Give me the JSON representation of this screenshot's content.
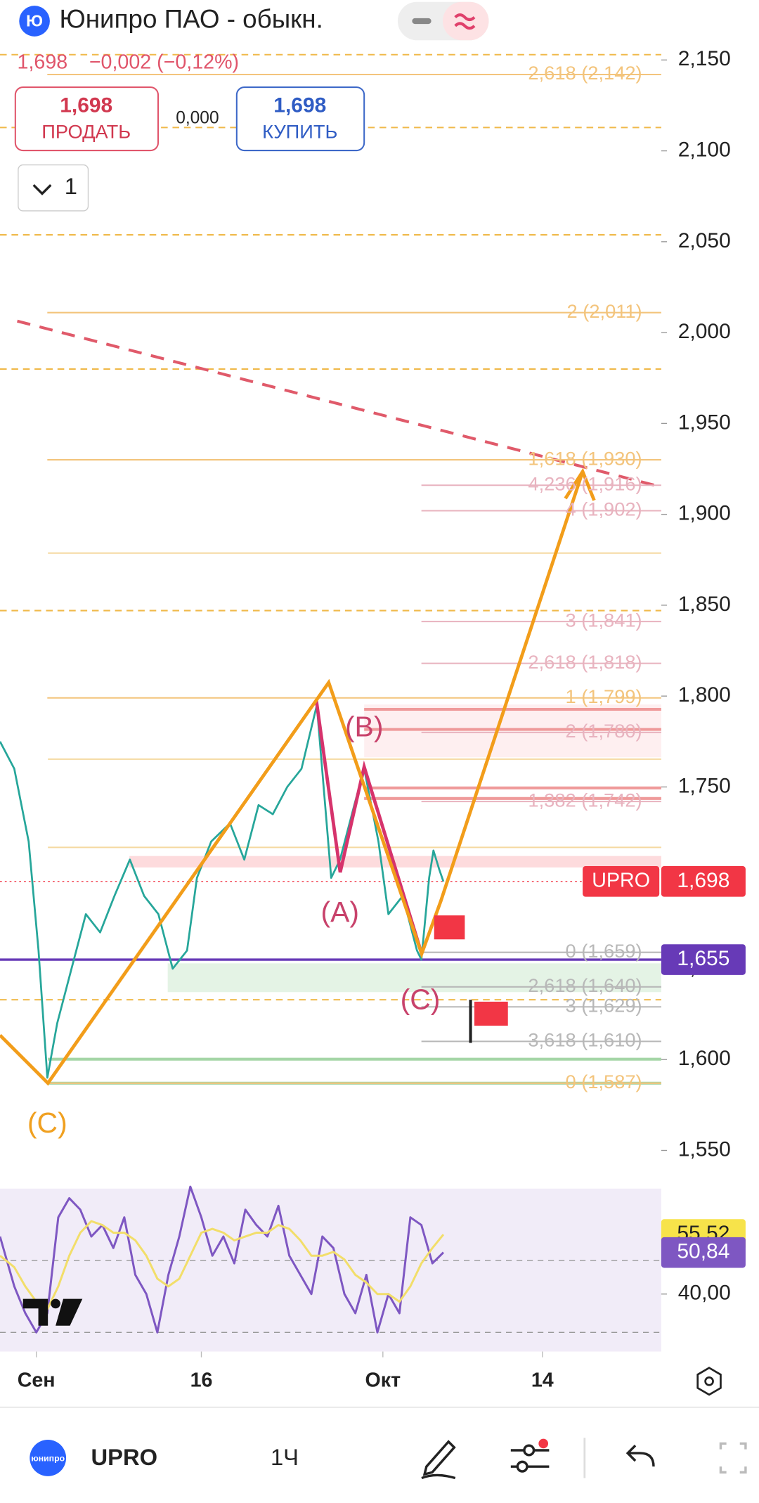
{
  "header": {
    "logo": "Ю",
    "title": "Юнипро ПАО - обыкн.",
    "price": "1,698",
    "change": "−0,002 (−0,12%)",
    "sell_price": "1,698",
    "sell_label": "ПРОДАТЬ",
    "spread": "0,000",
    "buy_price": "1,698",
    "buy_label": "КУПИТЬ",
    "layout_count": "1"
  },
  "chart_data": [
    {
      "type": "line",
      "color": "#26a69a",
      "x": [
        -3.3,
        -2.0,
        -0.7,
        0.2,
        1.0,
        1.9,
        3.2,
        4.5,
        5.8,
        7.1,
        8.5,
        9.8,
        11.1,
        12.4,
        13.7,
        14.6,
        15.9,
        17.6,
        18.9,
        20.2,
        21.5,
        22.8,
        24.1,
        25.5,
        26.8,
        27.6,
        28.9,
        29.8,
        31.1,
        32.0,
        33.3,
        34.6,
        35.0,
        35.7,
        36.1,
        36.6,
        37.0
      ],
      "values": [
        1775,
        1760,
        1720,
        1660,
        1590,
        1620,
        1650,
        1680,
        1670,
        1690,
        1710,
        1690,
        1680,
        1650,
        1660,
        1700,
        1720,
        1730,
        1710,
        1740,
        1735,
        1750,
        1760,
        1795,
        1700,
        1710,
        1740,
        1760,
        1720,
        1680,
        1690,
        1660,
        1655,
        1700,
        1715,
        1705,
        1698
      ],
      "xlim": [
        -3.3,
        56.8
      ],
      "xticks": [
        {
          "value": 0,
          "label": "Сен"
        },
        {
          "value": 15,
          "label": "16"
        },
        {
          "value": 31.5,
          "label": "Окт"
        },
        {
          "value": 46,
          "label": "14"
        }
      ],
      "ylim": [
        1529,
        2183
      ],
      "yticks": [
        {
          "value": 1550,
          "label": "1,550"
        },
        {
          "value": 1600,
          "label": "1,600"
        },
        {
          "value": 1650,
          "label": "1,650"
        },
        {
          "value": 1700,
          "label": "1,700"
        },
        {
          "value": 1750,
          "label": "1,750"
        },
        {
          "value": 1800,
          "label": "1,800"
        },
        {
          "value": 1850,
          "label": "1,850"
        },
        {
          "value": 1900,
          "label": "1,900"
        },
        {
          "value": 1950,
          "label": "1,950"
        },
        {
          "value": 2000,
          "label": "2,000"
        },
        {
          "value": 2050,
          "label": "2,050"
        },
        {
          "value": 2100,
          "label": "2,100"
        },
        {
          "value": 2150,
          "label": "2,150"
        }
      ],
      "annotations": [
        {
          "label": "2,618 (2,142)",
          "level": 2142,
          "x0": 1,
          "color": "#f3c47c"
        },
        {
          "label": "2 (2,011)",
          "level": 2011,
          "x0": 1,
          "color": "#f3c47c"
        },
        {
          "label": "1,618 (1,930)",
          "level": 1930,
          "x0": 1,
          "color": "#f3c47c"
        },
        {
          "label": "4,236 (1,916)",
          "level": 1916,
          "x0": 35,
          "color": "#e8b3bf"
        },
        {
          "label": "4 (1,902)",
          "level": 1902,
          "x0": 35,
          "color": "#e8b3bf"
        },
        {
          "label": "3 (1,841)",
          "level": 1841,
          "x0": 35,
          "color": "#e8b3bf"
        },
        {
          "label": "2,618 (1,818)",
          "level": 1818,
          "x0": 35,
          "color": "#e8b3bf"
        },
        {
          "label": "1 (1,799)",
          "level": 1799,
          "x0": 1,
          "color": "#f3c47c"
        },
        {
          "label": "2 (1,780)",
          "level": 1780,
          "x0": 35,
          "color": "#e8b3bf"
        },
        {
          "label": "1,382 (1,742)",
          "level": 1742,
          "x0": 35,
          "color": "#e8b3bf"
        },
        {
          "label": "0 (1,659)",
          "level": 1659,
          "x0": 35,
          "color": "#b8b8b8"
        },
        {
          "label": "2,618 (1,640)",
          "level": 1640,
          "x0": 35,
          "color": "#b8b8b8"
        },
        {
          "label": "3 (1,629)",
          "level": 1629,
          "x0": 35,
          "color": "#b8b8b8"
        },
        {
          "label": "3,618 (1,610)",
          "level": 1610,
          "x0": 35,
          "color": "#b8b8b8"
        },
        {
          "label": "0 (1,587)",
          "level": 1587,
          "x0": 1,
          "color": "#f3c47c"
        }
      ],
      "wave_labels": [
        {
          "text": "(B)",
          "x": 29.8,
          "y": 1782,
          "color": "#c8426b"
        },
        {
          "text": "(A)",
          "x": 27.6,
          "y": 1680,
          "color": "#c8426b"
        },
        {
          "text": "(C)",
          "x": 34.9,
          "y": 1632,
          "color": "#c8426b"
        },
        {
          "text": "(C)",
          "x": 1.0,
          "y": 1564,
          "color": "#f0a020"
        }
      ],
      "price_tags": [
        {
          "name": "UPRO",
          "label": "1,698",
          "value": 1698,
          "color": "#f23645"
        },
        {
          "label": "1,655",
          "value": 1655,
          "color": "#673ab7"
        }
      ]
    },
    {
      "type": "line",
      "x": [
        -3.3,
        -2,
        -1,
        0,
        1,
        2,
        3,
        4,
        5,
        6,
        7,
        8,
        9,
        10,
        11,
        12,
        13,
        14,
        15,
        16,
        17,
        18,
        19,
        20,
        21,
        22,
        23,
        24,
        25,
        26,
        27,
        28,
        29,
        30,
        31,
        32,
        33,
        34,
        35,
        36,
        37
      ],
      "series": [
        {
          "color": "#7e57c2",
          "values": [
            55,
            42,
            35,
            30,
            35,
            60,
            65,
            62,
            55,
            58,
            52,
            60,
            45,
            40,
            30,
            45,
            55,
            68,
            60,
            50,
            55,
            48,
            62,
            58,
            55,
            63,
            50,
            45,
            40,
            55,
            52,
            40,
            35,
            45,
            30,
            40,
            35,
            60,
            58,
            48,
            50.84
          ]
        },
        {
          "color": "#f2de6a",
          "values": [
            50,
            47,
            42,
            38,
            36,
            42,
            50,
            56,
            59,
            58,
            56,
            56,
            54,
            50,
            44,
            42,
            44,
            50,
            56,
            57,
            56,
            54,
            55,
            56,
            56,
            58,
            57,
            54,
            50,
            50,
            51,
            49,
            45,
            43,
            40,
            40,
            38,
            42,
            48,
            52,
            55.52
          ]
        }
      ],
      "xlim": [
        -3.3,
        56.8
      ],
      "ylim": [
        25,
        67.5
      ],
      "yticks": [
        {
          "value": 40,
          "label": "40,00"
        }
      ],
      "price_tags": [
        {
          "label": "55,52",
          "value": 55.52,
          "color": "#f7e34a",
          "text_color": "#222"
        },
        {
          "label": "50,84",
          "value": 50.84,
          "color": "#7e57c2",
          "text_color": "#fff"
        }
      ]
    }
  ],
  "toolbar": {
    "logo": "юнипро",
    "symbol": "UPRO",
    "interval": "1Ч"
  }
}
